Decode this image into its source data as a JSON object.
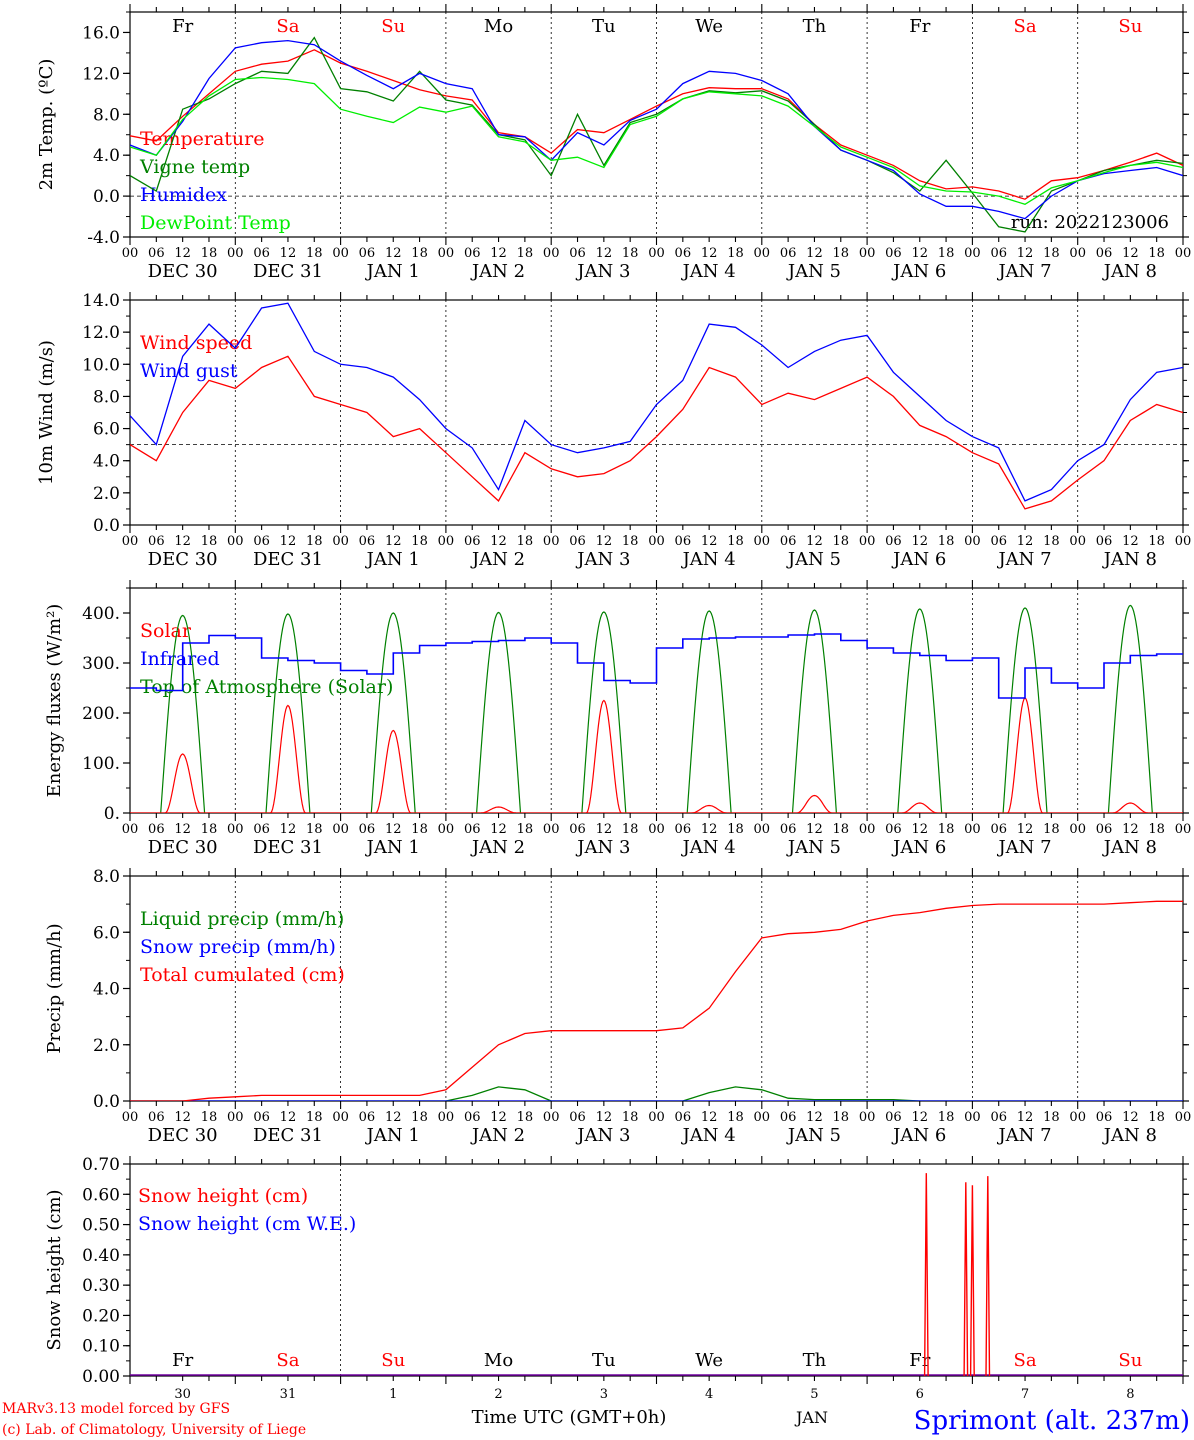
{
  "colors": {
    "red": "#ff0000",
    "green": "#008000",
    "blue": "#0000ff",
    "lightgreen": "#00ee00",
    "grey": "#555555"
  },
  "time_axis": {
    "hours": [
      "00",
      "06",
      "12",
      "18"
    ],
    "dates": [
      "DEC 30",
      "DEC 31",
      "JAN 1",
      "JAN 2",
      "JAN 3",
      "JAN 4",
      "JAN 5",
      "JAN 6",
      "JAN 7",
      "JAN 8"
    ],
    "weekdays": [
      "Fr",
      "Sa",
      "Su",
      "Mo",
      "Tu",
      "We",
      "Th",
      "Fr",
      "Sa",
      "Su"
    ],
    "weekend_flags": [
      false,
      true,
      true,
      false,
      false,
      false,
      false,
      false,
      true,
      true
    ],
    "day_numbers": [
      "30",
      "31",
      "1",
      "2",
      "3",
      "4",
      "5",
      "6",
      "7",
      "8"
    ],
    "month_label": "JAN",
    "xlabel": "Time UTC (GMT+0h)",
    "range_hours": [
      0,
      240
    ]
  },
  "footer": {
    "credit_line1": "MARv3.13 model forced by GFS",
    "credit_line2": "(c) Lab. of Climatology, University of Liege",
    "station": "Sprimont (alt. 237m)"
  },
  "chart_data": [
    {
      "type": "line",
      "id": "temp",
      "ylabel": "2m Temp. (ºC)",
      "ylim": [
        -4,
        18
      ],
      "yticks": [
        "-4.0",
        "0.0",
        "4.0",
        "8.0",
        "12.0",
        "16.0"
      ],
      "ref_line": 0,
      "annotation": "run: 2022123006",
      "legend": [
        "Temperature",
        "Vigne temp",
        "Humidex",
        "DewPoint Temp"
      ],
      "x": [
        0,
        6,
        12,
        18,
        24,
        30,
        36,
        42,
        48,
        54,
        60,
        66,
        72,
        78,
        84,
        90,
        96,
        102,
        108,
        114,
        120,
        126,
        132,
        138,
        144,
        150,
        156,
        162,
        168,
        174,
        180,
        186,
        192,
        198,
        204,
        210,
        216,
        222,
        228,
        234,
        240
      ],
      "series": [
        {
          "name": "Temperature",
          "values": [
            5.9,
            5.4,
            7.8,
            10.0,
            12.2,
            12.9,
            13.2,
            14.3,
            13.0,
            12.2,
            11.3,
            10.4,
            9.8,
            9.4,
            6.2,
            5.8,
            4.2,
            6.5,
            6.2,
            7.5,
            8.8,
            10.0,
            10.6,
            10.5,
            10.5,
            9.5,
            7.0,
            5.0,
            4.0,
            3.0,
            1.5,
            0.7,
            0.9,
            0.5,
            -0.3,
            1.5,
            1.8,
            2.5,
            3.3,
            4.2,
            3.0
          ]
        },
        {
          "name": "Vigne temp",
          "values": [
            2.0,
            0.5,
            8.5,
            9.5,
            11.0,
            12.2,
            12.0,
            15.5,
            10.5,
            10.2,
            9.3,
            12.2,
            9.4,
            8.9,
            6.0,
            5.5,
            2.0,
            8.0,
            3.0,
            7.2,
            8.0,
            9.5,
            10.3,
            10.1,
            10.3,
            9.3,
            7.0,
            4.5,
            3.5,
            2.3,
            0.5,
            3.5,
            0.3,
            -3.0,
            -3.5,
            0.5,
            1.5,
            2.5,
            3.0,
            3.5,
            3.2
          ]
        },
        {
          "name": "Humidex",
          "values": [
            5.0,
            4.0,
            7.3,
            11.5,
            14.5,
            15.0,
            15.2,
            14.8,
            13.2,
            11.8,
            10.5,
            12.0,
            11.0,
            10.5,
            6.0,
            5.8,
            3.5,
            6.2,
            5.0,
            7.4,
            8.5,
            11.0,
            12.2,
            12.0,
            11.3,
            10.0,
            6.8,
            4.5,
            3.5,
            2.5,
            0.2,
            -1.0,
            -1.0,
            -1.5,
            -2.2,
            0.0,
            1.5,
            2.2,
            2.5,
            2.8,
            2.0
          ]
        },
        {
          "name": "DewPoint Temp",
          "values": [
            4.8,
            4.0,
            7.5,
            9.8,
            11.4,
            11.6,
            11.4,
            11.0,
            8.5,
            7.8,
            7.2,
            8.7,
            8.2,
            8.8,
            5.8,
            5.3,
            3.5,
            3.8,
            2.8,
            7.0,
            7.8,
            9.5,
            10.2,
            10.0,
            9.8,
            8.8,
            6.8,
            4.8,
            3.8,
            2.8,
            1.0,
            0.5,
            0.4,
            0.0,
            -0.8,
            0.8,
            1.5,
            2.3,
            3.0,
            3.3,
            2.8
          ]
        }
      ]
    },
    {
      "type": "line",
      "id": "wind",
      "ylabel": "10m Wind (m/s)",
      "ylim": [
        0,
        14
      ],
      "yticks": [
        "0.0",
        "2.0",
        "4.0",
        "6.0",
        "8.0",
        "10.0",
        "12.0",
        "14.0"
      ],
      "ref_line": 5,
      "legend": [
        "Wind speed",
        "Wind gust"
      ],
      "x": [
        0,
        6,
        12,
        18,
        24,
        30,
        36,
        42,
        48,
        54,
        60,
        66,
        72,
        78,
        84,
        90,
        96,
        102,
        108,
        114,
        120,
        126,
        132,
        138,
        144,
        150,
        156,
        162,
        168,
        174,
        180,
        186,
        192,
        198,
        204,
        210,
        216,
        222,
        228,
        234,
        240
      ],
      "series": [
        {
          "name": "Wind speed",
          "values": [
            5.0,
            4.0,
            7.0,
            9.0,
            8.5,
            9.8,
            10.5,
            8.0,
            7.5,
            7.0,
            5.5,
            6.0,
            4.5,
            3.0,
            1.5,
            4.5,
            3.5,
            3.0,
            3.2,
            4.0,
            5.5,
            7.2,
            9.8,
            9.2,
            7.5,
            8.2,
            7.8,
            8.5,
            9.2,
            8.0,
            6.2,
            5.5,
            4.5,
            3.8,
            1.0,
            1.5,
            2.8,
            4.0,
            6.5,
            7.5,
            7.0
          ]
        },
        {
          "name": "Wind gust",
          "values": [
            6.8,
            5.0,
            10.5,
            12.5,
            11.0,
            13.5,
            13.8,
            10.8,
            10.0,
            9.8,
            9.2,
            7.8,
            6.0,
            4.8,
            2.2,
            6.5,
            5.0,
            4.5,
            4.8,
            5.2,
            7.5,
            9.0,
            12.5,
            12.3,
            11.2,
            9.8,
            10.8,
            11.5,
            11.8,
            9.5,
            8.0,
            6.5,
            5.5,
            4.8,
            1.5,
            2.2,
            4.0,
            5.0,
            7.8,
            9.5,
            9.8
          ]
        }
      ]
    },
    {
      "type": "line",
      "id": "energy",
      "ylabel": "Energy fluxes (W/m²)",
      "ylim": [
        0,
        450
      ],
      "yticks": [
        "0.",
        "100.",
        "200.",
        "300.",
        "400."
      ],
      "legend": [
        "Solar",
        "Infrared",
        "Top of Atmosphere (Solar)"
      ],
      "toa_peaks": [
        395,
        398,
        400,
        401,
        402,
        404,
        406,
        408,
        410,
        415
      ],
      "solar_peaks": [
        118,
        215,
        165,
        12,
        225,
        15,
        35,
        20,
        230,
        20
      ],
      "infrared": {
        "x": [
          0,
          6,
          12,
          18,
          24,
          30,
          36,
          42,
          48,
          54,
          60,
          66,
          72,
          78,
          84,
          90,
          96,
          102,
          108,
          114,
          120,
          126,
          132,
          138,
          144,
          150,
          156,
          162,
          168,
          174,
          180,
          186,
          192,
          198,
          204,
          210,
          216,
          222,
          228,
          234,
          240
        ],
        "values": [
          250,
          245,
          340,
          355,
          350,
          310,
          305,
          300,
          285,
          278,
          320,
          335,
          340,
          343,
          345,
          350,
          340,
          300,
          265,
          260,
          330,
          348,
          350,
          352,
          352,
          356,
          358,
          345,
          330,
          320,
          315,
          305,
          310,
          230,
          290,
          260,
          250,
          300,
          315,
          318,
          318
        ]
      }
    },
    {
      "type": "line",
      "id": "precip",
      "ylabel": "Precip (mm/h)",
      "ylim": [
        0,
        8
      ],
      "yticks": [
        "0.0",
        "2.0",
        "4.0",
        "6.0",
        "8.0"
      ],
      "legend": [
        "Liquid precip (mm/h)",
        "Snow precip (mm/h)",
        "Total cumulated (cm)"
      ],
      "x": [
        0,
        6,
        12,
        18,
        24,
        30,
        36,
        42,
        48,
        54,
        60,
        66,
        72,
        78,
        84,
        90,
        96,
        102,
        108,
        114,
        120,
        126,
        132,
        138,
        144,
        150,
        156,
        162,
        168,
        174,
        180,
        186,
        192,
        198,
        204,
        210,
        216,
        222,
        228,
        234,
        240
      ],
      "series": [
        {
          "name": "Liquid precip (mm/h)",
          "values": [
            0,
            0,
            0,
            0,
            0,
            0,
            0,
            0,
            0,
            0,
            0,
            0,
            0,
            0.2,
            0.5,
            0.4,
            0,
            0,
            0,
            0,
            0,
            0,
            0.3,
            0.5,
            0.4,
            0.1,
            0.05,
            0.05,
            0.05,
            0.05,
            0,
            0,
            0,
            0,
            0,
            0,
            0,
            0,
            0,
            0,
            0
          ]
        },
        {
          "name": "Snow precip (mm/h)",
          "values": [
            0,
            0,
            0,
            0,
            0,
            0,
            0,
            0,
            0,
            0,
            0,
            0,
            0,
            0,
            0,
            0,
            0,
            0,
            0,
            0,
            0,
            0,
            0,
            0,
            0,
            0,
            0,
            0,
            0,
            0,
            0,
            0,
            0,
            0,
            0,
            0,
            0,
            0,
            0,
            0,
            0
          ]
        },
        {
          "name": "Total cumulated (cm)",
          "values": [
            0,
            0,
            0,
            0.1,
            0.15,
            0.2,
            0.2,
            0.2,
            0.2,
            0.2,
            0.2,
            0.2,
            0.4,
            1.2,
            2.0,
            2.4,
            2.5,
            2.5,
            2.5,
            2.5,
            2.5,
            2.6,
            3.3,
            4.6,
            5.8,
            5.95,
            6.0,
            6.1,
            6.4,
            6.6,
            6.7,
            6.85,
            6.95,
            7.0,
            7.0,
            7.0,
            7.0,
            7.0,
            7.05,
            7.1,
            7.1
          ]
        }
      ]
    },
    {
      "type": "line",
      "id": "snow",
      "ylabel": "Snow height (cm)",
      "ylim": [
        0,
        0.7
      ],
      "yticks": [
        "0.00",
        "0.10",
        "0.20",
        "0.30",
        "0.40",
        "0.50",
        "0.60",
        "0.70"
      ],
      "legend": [
        "Snow height (cm)",
        "Snow height (cm W.E.)"
      ],
      "spikes": [
        {
          "x": 181.5,
          "v": 0.67
        },
        {
          "x": 190.5,
          "v": 0.64
        },
        {
          "x": 192.0,
          "v": 0.63
        },
        {
          "x": 195.5,
          "v": 0.66
        }
      ]
    }
  ]
}
